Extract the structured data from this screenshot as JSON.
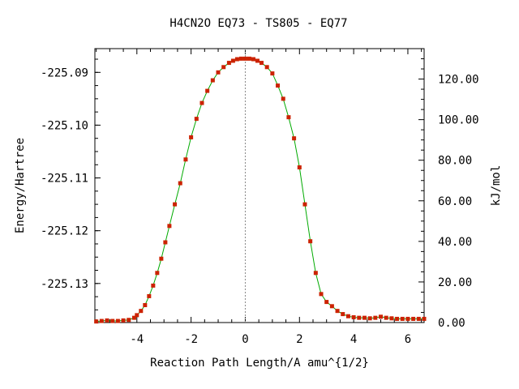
{
  "chart_data": {
    "type": "line",
    "title": "H4CN2O   EQ73 - TS805 - EQ77",
    "xlabel": "Reaction Path Length/A amu^{1/2}",
    "ylabel": "Energy/Hartree",
    "y2label": "kJ/mol",
    "xlim": [
      -5.55,
      6.6
    ],
    "ylim": [
      -225.1374,
      -225.0855
    ],
    "y2lim": [
      0,
      135
    ],
    "x_ticks": [
      -4,
      -2,
      0,
      2,
      4,
      6
    ],
    "x_tick_labels": [
      "-4",
      "-2",
      "0",
      "2",
      "4",
      "6"
    ],
    "y_ticks": [
      -225.09,
      -225.1,
      -225.11,
      -225.12,
      -225.13
    ],
    "y_tick_labels": [
      "-225.09",
      "-225.10",
      "-225.11",
      "-225.12",
      "-225.13"
    ],
    "y2_ticks": [
      0,
      20,
      40,
      60,
      80,
      100,
      120
    ],
    "y2_tick_labels": [
      "0.00",
      "20.00",
      "40.00",
      "60.00",
      "80.00",
      "100.00",
      "120.00"
    ],
    "ts_marker_x": 0,
    "line_color": "#00aa00",
    "marker_color": "#cc2200",
    "ts_line_color": "#888888",
    "series": [
      {
        "x": [
          -5.5,
          -5.3,
          -5.1,
          -4.9,
          -4.7,
          -4.5,
          -4.3,
          -4.1,
          -4.0,
          -3.85,
          -3.7,
          -3.55,
          -3.4,
          -3.25,
          -3.1,
          -2.95,
          -2.8,
          -2.6,
          -2.4,
          -2.2,
          -2.0,
          -1.8,
          -1.6,
          -1.4,
          -1.2,
          -1.0,
          -0.8,
          -0.6,
          -0.45,
          -0.3,
          -0.15,
          0.0,
          0.15,
          0.3,
          0.45,
          0.6,
          0.8,
          1.0,
          1.2,
          1.4,
          1.6,
          1.8,
          2.0,
          2.2,
          2.4,
          2.6,
          2.8,
          3.0,
          3.2,
          3.4,
          3.6,
          3.8,
          4.0,
          4.2,
          4.4,
          4.6,
          4.8,
          5.0,
          5.2,
          5.4,
          5.6,
          5.8,
          6.0,
          6.2,
          6.4,
          6.6
        ],
        "y": [
          -225.1372,
          -225.1371,
          -225.137,
          -225.1371,
          -225.1371,
          -225.137,
          -225.1369,
          -225.1365,
          -225.136,
          -225.1352,
          -225.1341,
          -225.1324,
          -225.1304,
          -225.128,
          -225.1253,
          -225.1222,
          -225.1191,
          -225.115,
          -225.111,
          -225.1065,
          -225.1023,
          -225.0988,
          -225.0958,
          -225.0935,
          -225.0915,
          -225.09,
          -225.089,
          -225.0882,
          -225.0878,
          -225.0875,
          -225.0874,
          -225.0874,
          -225.0874,
          -225.0875,
          -225.0878,
          -225.0882,
          -225.089,
          -225.0902,
          -225.0925,
          -225.095,
          -225.0985,
          -225.1025,
          -225.108,
          -225.115,
          -225.122,
          -225.128,
          -225.132,
          -225.1335,
          -225.1343,
          -225.1352,
          -225.1358,
          -225.1362,
          -225.1364,
          -225.1365,
          -225.1365,
          -225.1366,
          -225.1365,
          -225.1363,
          -225.1365,
          -225.1366,
          -225.1367,
          -225.1367,
          -225.1367,
          -225.1367,
          -225.1367,
          -225.1367
        ]
      }
    ]
  }
}
